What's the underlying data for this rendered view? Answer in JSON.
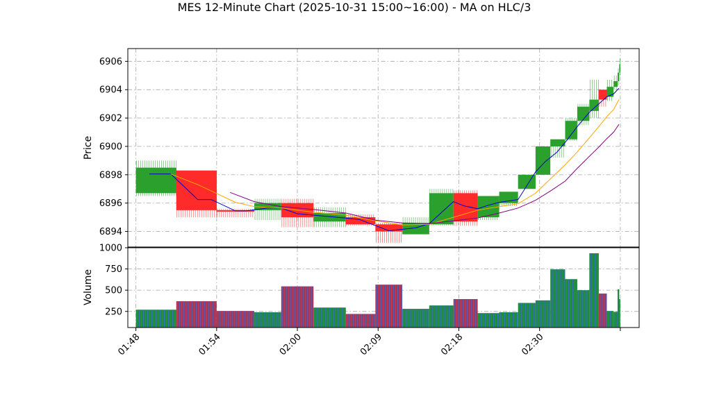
{
  "chart_data": {
    "type": "candlestick",
    "title": "MES 12-Minute Chart (2025-10-31 15:00~16:00) - MA on HLC/3",
    "price_panel": {
      "ylabel": "Price",
      "ylim": [
        6892.9,
        6906.9
      ],
      "yticks": [
        6894,
        6896,
        6898,
        6900,
        6902,
        6904,
        6906
      ],
      "grid": true
    },
    "volume_panel": {
      "ylabel": "Volume",
      "ylim": [
        60,
        1000
      ],
      "yticks": [
        250,
        500,
        750,
        1000
      ],
      "grid": true
    },
    "x_axis": {
      "xlim": [
        -0.3,
        18.7
      ],
      "ticks": [
        {
          "x": 0,
          "label": "01:48"
        },
        {
          "x": 3,
          "label": "01:54"
        },
        {
          "x": 6,
          "label": "02:00"
        },
        {
          "x": 9,
          "label": "02:09"
        },
        {
          "x": 12,
          "label": "02:18"
        },
        {
          "x": 15,
          "label": "02:30"
        },
        {
          "x": 18,
          "label": ""
        }
      ]
    },
    "up_color": "#2ca02c",
    "down_color": "#ff2a2a",
    "bars": [
      {
        "x0": 0.0,
        "x1": 1.5,
        "open": 6896.7,
        "close": 6898.5,
        "high": 6899.0,
        "low": 6896.5,
        "volume": 270
      },
      {
        "x0": 1.5,
        "x1": 3.0,
        "open": 6898.3,
        "close": 6895.5,
        "high": 6898.3,
        "low": 6895.0,
        "volume": 370
      },
      {
        "x0": 3.0,
        "x1": 4.4,
        "open": 6895.5,
        "close": 6895.4,
        "high": 6895.6,
        "low": 6895.0,
        "volume": 255
      },
      {
        "x0": 4.4,
        "x1": 5.4,
        "open": 6895.5,
        "close": 6896.0,
        "high": 6896.3,
        "low": 6894.8,
        "volume": 240
      },
      {
        "x0": 5.4,
        "x1": 6.6,
        "open": 6896.0,
        "close": 6895.0,
        "high": 6896.3,
        "low": 6894.3,
        "volume": 545
      },
      {
        "x0": 6.6,
        "x1": 7.8,
        "open": 6894.7,
        "close": 6895.3,
        "high": 6895.7,
        "low": 6894.3,
        "volume": 295
      },
      {
        "x0": 7.8,
        "x1": 8.9,
        "open": 6895.0,
        "close": 6894.5,
        "high": 6895.2,
        "low": 6894.4,
        "volume": 220
      },
      {
        "x0": 8.9,
        "x1": 9.9,
        "open": 6894.5,
        "close": 6894.0,
        "high": 6894.6,
        "low": 6893.2,
        "volume": 565
      },
      {
        "x0": 9.9,
        "x1": 10.9,
        "open": 6893.8,
        "close": 6894.6,
        "high": 6895.0,
        "low": 6893.8,
        "volume": 280
      },
      {
        "x0": 10.9,
        "x1": 11.8,
        "open": 6894.5,
        "close": 6896.7,
        "high": 6897.0,
        "low": 6894.4,
        "volume": 320
      },
      {
        "x0": 11.8,
        "x1": 12.7,
        "open": 6896.7,
        "close": 6894.7,
        "high": 6896.9,
        "low": 6894.4,
        "volume": 395
      },
      {
        "x0": 12.7,
        "x1": 13.5,
        "open": 6895.0,
        "close": 6896.5,
        "high": 6896.5,
        "low": 6894.8,
        "volume": 230
      },
      {
        "x0": 13.5,
        "x1": 14.2,
        "open": 6896.0,
        "close": 6896.8,
        "high": 6896.8,
        "low": 6895.8,
        "volume": 240
      },
      {
        "x0": 14.2,
        "x1": 14.85,
        "open": 6897.0,
        "close": 6898.0,
        "high": 6898.0,
        "low": 6897.0,
        "volume": 350
      },
      {
        "x0": 14.85,
        "x1": 15.4,
        "open": 6898.0,
        "close": 6900.0,
        "high": 6900.0,
        "low": 6898.0,
        "volume": 380
      },
      {
        "x0": 15.4,
        "x1": 15.95,
        "open": 6900.0,
        "close": 6900.5,
        "high": 6900.5,
        "low": 6899.2,
        "volume": 745
      },
      {
        "x0": 15.95,
        "x1": 16.4,
        "open": 6900.5,
        "close": 6901.8,
        "high": 6902.0,
        "low": 6900.4,
        "volume": 630
      },
      {
        "x0": 16.4,
        "x1": 16.85,
        "open": 6901.8,
        "close": 6902.8,
        "high": 6903.0,
        "low": 6901.5,
        "volume": 500
      },
      {
        "x0": 16.85,
        "x1": 17.2,
        "open": 6902.5,
        "close": 6903.3,
        "high": 6904.7,
        "low": 6902.0,
        "volume": 935
      },
      {
        "x0": 17.2,
        "x1": 17.5,
        "open": 6904.0,
        "close": 6903.3,
        "high": 6904.0,
        "low": 6902.8,
        "volume": 460
      },
      {
        "x0": 17.5,
        "x1": 17.75,
        "open": 6903.5,
        "close": 6904.2,
        "high": 6904.7,
        "low": 6903.2,
        "volume": 255
      },
      {
        "x0": 17.75,
        "x1": 17.9,
        "open": 6904.2,
        "close": 6904.6,
        "high": 6905.0,
        "low": 6904.0,
        "volume": 245
      },
      {
        "x0": 17.9,
        "x1": 17.96,
        "open": 6904.6,
        "close": 6905.2,
        "high": 6905.5,
        "low": 6904.3,
        "volume": 510
      },
      {
        "x0": 17.96,
        "x1": 18.0,
        "open": 6905.2,
        "close": 6905.8,
        "high": 6906.2,
        "low": 6905.0,
        "volume": 395
      }
    ],
    "series": [
      {
        "color": "#0000cc",
        "points": [
          [
            0.5,
            6898.05
          ],
          [
            1.3,
            6898.05
          ],
          [
            2.3,
            6896.25
          ],
          [
            2.8,
            6896.25
          ],
          [
            3.7,
            6895.45
          ],
          [
            4.1,
            6895.45
          ],
          [
            4.9,
            6895.65
          ],
          [
            5.4,
            6895.65
          ],
          [
            6.0,
            6895.25
          ],
          [
            7.2,
            6895.05
          ],
          [
            8.3,
            6894.85
          ],
          [
            9.4,
            6894.05
          ],
          [
            10.4,
            6894.25
          ],
          [
            10.9,
            6894.55
          ],
          [
            11.8,
            6896.1
          ],
          [
            12.2,
            6895.8
          ],
          [
            12.7,
            6895.6
          ],
          [
            13.1,
            6895.85
          ],
          [
            13.5,
            6896.05
          ],
          [
            14.2,
            6896.25
          ],
          [
            14.85,
            6898.2
          ],
          [
            15.2,
            6898.9
          ],
          [
            15.65,
            6899.6
          ],
          [
            16.0,
            6900.4
          ],
          [
            16.4,
            6901.4
          ],
          [
            16.85,
            6902.4
          ],
          [
            17.2,
            6903.0
          ],
          [
            17.5,
            6903.5
          ],
          [
            17.75,
            6903.7
          ],
          [
            17.95,
            6904.1
          ]
        ]
      },
      {
        "color": "#ffa500",
        "points": [
          [
            1.3,
            6898.05
          ],
          [
            2.3,
            6897.3
          ],
          [
            3.7,
            6896.05
          ],
          [
            4.4,
            6895.75
          ],
          [
            5.4,
            6895.65
          ],
          [
            6.6,
            6895.35
          ],
          [
            7.8,
            6895.15
          ],
          [
            8.9,
            6894.75
          ],
          [
            9.9,
            6894.45
          ],
          [
            10.9,
            6894.5
          ],
          [
            11.8,
            6895.0
          ],
          [
            12.7,
            6895.5
          ],
          [
            13.5,
            6895.75
          ],
          [
            14.2,
            6895.95
          ],
          [
            14.85,
            6896.7
          ],
          [
            15.4,
            6897.7
          ],
          [
            15.95,
            6898.7
          ],
          [
            16.4,
            6899.6
          ],
          [
            16.85,
            6900.6
          ],
          [
            17.2,
            6901.4
          ],
          [
            17.5,
            6902.1
          ],
          [
            17.75,
            6902.6
          ],
          [
            17.95,
            6903.3
          ]
        ]
      },
      {
        "color": "#800080",
        "points": [
          [
            3.5,
            6896.75
          ],
          [
            4.4,
            6896.1
          ],
          [
            5.4,
            6895.75
          ],
          [
            6.6,
            6895.55
          ],
          [
            7.8,
            6895.3
          ],
          [
            8.9,
            6894.8
          ],
          [
            9.9,
            6894.6
          ],
          [
            10.9,
            6894.55
          ],
          [
            11.8,
            6894.75
          ],
          [
            12.7,
            6894.95
          ],
          [
            13.5,
            6895.3
          ],
          [
            14.2,
            6895.65
          ],
          [
            14.85,
            6896.2
          ],
          [
            15.4,
            6896.85
          ],
          [
            15.95,
            6897.55
          ],
          [
            16.4,
            6898.45
          ],
          [
            16.85,
            6899.3
          ],
          [
            17.2,
            6899.95
          ],
          [
            17.5,
            6900.55
          ],
          [
            17.75,
            6901.0
          ],
          [
            17.95,
            6901.55
          ]
        ]
      }
    ]
  }
}
